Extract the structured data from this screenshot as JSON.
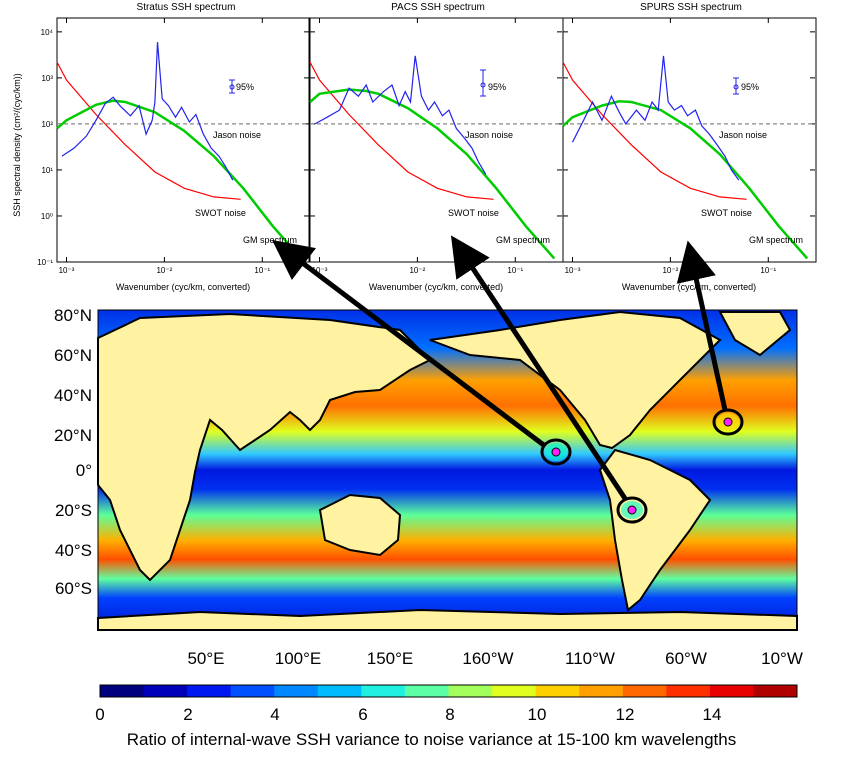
{
  "spectra": {
    "ylabel": "SSH spectral density (cm²/(cyc/km))",
    "xlabel": "Wavenumber (cyc/km, converted)",
    "xticks": [
      "10⁻³",
      "10⁻²",
      "10⁻¹"
    ],
    "yticks": [
      "10⁻¹",
      "10⁰",
      "10¹",
      "10²",
      "10³",
      "10⁴"
    ],
    "conf_label": "95%",
    "jason_label": "Jason noise",
    "swot_label": "SWOT noise",
    "gm_label": "GM spectrum"
  },
  "map": {
    "lat_labels": [
      "80°N",
      "60°N",
      "40°N",
      "20°N",
      "0°",
      "20°S",
      "40°S",
      "60°S"
    ],
    "lon_labels": [
      "50°E",
      "100°E",
      "150°E",
      "160°W",
      "110°W",
      "60°W",
      "10°W"
    ]
  },
  "colorbar": {
    "tick_labels": [
      "0",
      "2",
      "4",
      "6",
      "8",
      "10",
      "12",
      "14"
    ],
    "caption": "Ratio of internal-wave SSH variance to noise variance at 15-100 km wavelengths",
    "colors": [
      "#00007f",
      "#0000b8",
      "#0018f0",
      "#0050ff",
      "#0088ff",
      "#00bcff",
      "#1ff0e0",
      "#5cffa3",
      "#a3ff5c",
      "#e0ff1f",
      "#ffd000",
      "#ffa000",
      "#ff6800",
      "#ff3000",
      "#e80000",
      "#b00000"
    ]
  },
  "chart_data": [
    {
      "type": "line",
      "title": "Stratus SSH spectrum",
      "xlabel": "Wavenumber (cyc/km, converted)",
      "ylabel": "SSH spectral density (cm²/(cyc/km))",
      "xscale": "log",
      "yscale": "log",
      "xlim": [
        0.0008,
        0.3
      ],
      "ylim": [
        0.1,
        20000
      ],
      "series": [
        {
          "name": "Jason noise",
          "color": "#888888",
          "style": "dashed",
          "x": [
            0.0008,
            0.3
          ],
          "y": [
            100,
            100
          ]
        },
        {
          "name": "SWOT noise",
          "color": "#ff0000",
          "x": [
            0.0008,
            0.001,
            0.002,
            0.004,
            0.008,
            0.016,
            0.032,
            0.06
          ],
          "y": [
            2200,
            900,
            160,
            35,
            9,
            4,
            2.6,
            2.3
          ]
        },
        {
          "name": "GM spectrum",
          "color": "#00cc00",
          "x": [
            0.0008,
            0.001,
            0.002,
            0.003,
            0.004,
            0.008,
            0.016,
            0.032,
            0.064,
            0.128,
            0.25
          ],
          "y": [
            80,
            120,
            260,
            320,
            300,
            180,
            70,
            20,
            4,
            0.6,
            0.12
          ]
        },
        {
          "name": "SSH spectrum",
          "color": "#2222ee",
          "x": [
            0.0009,
            0.0012,
            0.0016,
            0.002,
            0.0025,
            0.003,
            0.0035,
            0.0045,
            0.0055,
            0.0065,
            0.0075,
            0.008,
            0.0085,
            0.0095,
            0.011,
            0.013,
            0.015,
            0.018,
            0.021,
            0.025,
            0.03,
            0.036,
            0.042,
            0.05
          ],
          "y": [
            20,
            30,
            55,
            120,
            280,
            380,
            250,
            150,
            250,
            60,
            120,
            300,
            6000,
            350,
            250,
            140,
            230,
            110,
            160,
            60,
            30,
            20,
            12,
            6
          ]
        }
      ]
    },
    {
      "type": "line",
      "title": "PACS SSH spectrum",
      "xlabel": "Wavenumber (cyc/km, converted)",
      "xscale": "log",
      "yscale": "log",
      "xlim": [
        0.0008,
        0.3
      ],
      "ylim": [
        0.1,
        20000
      ],
      "series": [
        {
          "name": "Jason noise",
          "color": "#888888",
          "style": "dashed",
          "x": [
            0.0008,
            0.3
          ],
          "y": [
            100,
            100
          ]
        },
        {
          "name": "SWOT noise",
          "color": "#ff0000",
          "x": [
            0.0008,
            0.001,
            0.002,
            0.004,
            0.008,
            0.016,
            0.032,
            0.06
          ],
          "y": [
            2200,
            900,
            160,
            35,
            9,
            4,
            2.6,
            2.3
          ]
        },
        {
          "name": "GM spectrum",
          "color": "#00cc00",
          "x": [
            0.0008,
            0.001,
            0.002,
            0.003,
            0.004,
            0.008,
            0.016,
            0.032,
            0.064,
            0.128,
            0.25
          ],
          "y": [
            300,
            450,
            560,
            520,
            450,
            220,
            80,
            22,
            4,
            0.6,
            0.12
          ]
        },
        {
          "name": "SSH spectrum",
          "color": "#2222ee",
          "x": [
            0.0009,
            0.0012,
            0.0016,
            0.002,
            0.0025,
            0.003,
            0.0035,
            0.0045,
            0.0055,
            0.0065,
            0.0075,
            0.0085,
            0.0095,
            0.011,
            0.013,
            0.015,
            0.018,
            0.021,
            0.025,
            0.03,
            0.036,
            0.042,
            0.05
          ],
          "y": [
            100,
            140,
            200,
            600,
            400,
            700,
            300,
            500,
            700,
            250,
            500,
            300,
            3000,
            400,
            200,
            300,
            150,
            200,
            80,
            50,
            30,
            15,
            8
          ]
        }
      ]
    },
    {
      "type": "line",
      "title": "SPURS SSH spectrum",
      "xlabel": "Wavenumber (cyc/km, converted)",
      "xscale": "log",
      "yscale": "log",
      "xlim": [
        0.0008,
        0.3
      ],
      "ylim": [
        0.1,
        20000
      ],
      "series": [
        {
          "name": "Jason noise",
          "color": "#888888",
          "style": "dashed",
          "x": [
            0.0008,
            0.3
          ],
          "y": [
            100,
            100
          ]
        },
        {
          "name": "SWOT noise",
          "color": "#ff0000",
          "x": [
            0.0008,
            0.001,
            0.002,
            0.004,
            0.008,
            0.016,
            0.032,
            0.06
          ],
          "y": [
            2200,
            900,
            160,
            35,
            9,
            4,
            2.6,
            2.3
          ]
        },
        {
          "name": "GM spectrum",
          "color": "#00cc00",
          "x": [
            0.0008,
            0.001,
            0.002,
            0.003,
            0.004,
            0.008,
            0.016,
            0.032,
            0.064,
            0.128,
            0.25
          ],
          "y": [
            90,
            140,
            250,
            310,
            300,
            200,
            80,
            22,
            4,
            0.6,
            0.12
          ]
        },
        {
          "name": "SSH spectrum",
          "color": "#2222ee",
          "x": [
            0.001,
            0.0013,
            0.0016,
            0.002,
            0.0025,
            0.003,
            0.0035,
            0.0045,
            0.0055,
            0.0065,
            0.0075,
            0.0085,
            0.0095,
            0.011,
            0.013,
            0.015,
            0.018,
            0.021,
            0.025,
            0.03,
            0.036,
            0.042,
            0.05
          ],
          "y": [
            40,
            120,
            300,
            120,
            400,
            180,
            100,
            200,
            120,
            300,
            200,
            3000,
            300,
            200,
            250,
            150,
            200,
            90,
            60,
            35,
            20,
            10,
            6
          ]
        }
      ]
    }
  ]
}
